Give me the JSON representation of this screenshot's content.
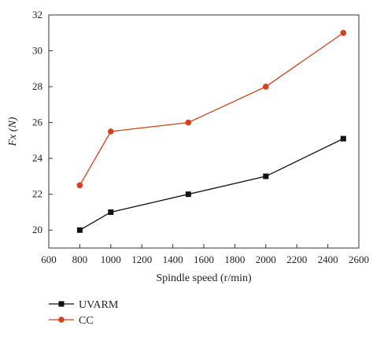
{
  "chart_data": {
    "type": "line",
    "xlabel": "Spindle speed (r/min)",
    "ylabel": "Fx (N)",
    "xlim": [
      600,
      2600
    ],
    "ylim": [
      19,
      32
    ],
    "x_ticks": [
      600,
      800,
      1000,
      1200,
      1400,
      1600,
      1800,
      2000,
      2200,
      2400,
      2600
    ],
    "y_ticks": [
      20,
      22,
      24,
      26,
      28,
      30,
      32
    ],
    "grid": false,
    "legend_position": "bottom-left",
    "series": [
      {
        "name": "UVARM",
        "color": "#111111",
        "marker": "square",
        "points": [
          {
            "x": 800,
            "y": 20.0
          },
          {
            "x": 1000,
            "y": 21.0
          },
          {
            "x": 1500,
            "y": 22.0
          },
          {
            "x": 2000,
            "y": 23.0
          },
          {
            "x": 2500,
            "y": 25.1
          }
        ]
      },
      {
        "name": "CC",
        "color": "#d2401e",
        "marker": "circle",
        "points": [
          {
            "x": 800,
            "y": 22.5
          },
          {
            "x": 1000,
            "y": 25.5
          },
          {
            "x": 1500,
            "y": 26.0
          },
          {
            "x": 2000,
            "y": 28.0
          },
          {
            "x": 2500,
            "y": 31.0
          }
        ]
      }
    ]
  }
}
